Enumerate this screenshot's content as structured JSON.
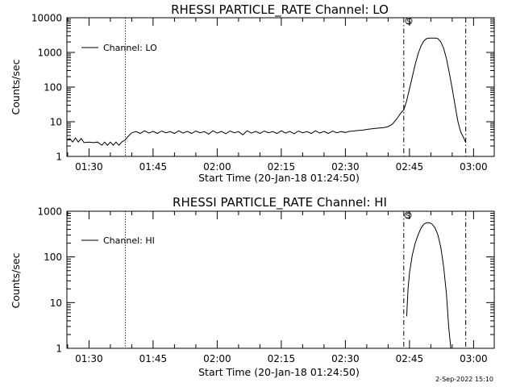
{
  "timestamp": "2-Sep-2022 15:10",
  "chart_data": [
    {
      "type": "line",
      "title": "RHESSI PARTICLE_RATE Channel: LO",
      "xlabel": "Start Time (20-Jan-18 01:24:50)",
      "ylabel": "Counts/sec",
      "y_scale": "log",
      "ylim": [
        1,
        10000
      ],
      "y_ticks": [
        "1",
        "10",
        "100",
        "1000",
        "10000"
      ],
      "xlim": [
        "01:24:50",
        "03:04:50"
      ],
      "x_ticks": [
        "01:30",
        "01:45",
        "02:00",
        "02:15",
        "02:30",
        "02:45",
        "03:00"
      ],
      "legend": {
        "position": "top-left",
        "entries": [
          "Channel: LO"
        ]
      },
      "marker_label": "S",
      "vertical_lines": [
        {
          "time": "01:38:30",
          "style": "dotted"
        },
        {
          "time": "02:43:40",
          "style": "dash-dot"
        },
        {
          "time": "02:58:10",
          "style": "dash-dot"
        }
      ],
      "series": [
        {
          "name": "Channel: LO",
          "points": [
            [
              "01:24:50",
              3.0
            ],
            [
              "01:25:30",
              3.3
            ],
            [
              "01:26:10",
              2.6
            ],
            [
              "01:26:50",
              3.4
            ],
            [
              "01:27:30",
              2.6
            ],
            [
              "01:28:10",
              3.3
            ],
            [
              "01:28:50",
              2.5
            ],
            [
              "01:30:00",
              2.6
            ],
            [
              "01:31:00",
              2.5
            ],
            [
              "01:32:00",
              2.6
            ],
            [
              "01:33:00",
              2.1
            ],
            [
              "01:33:40",
              2.6
            ],
            [
              "01:34:20",
              2.1
            ],
            [
              "01:35:00",
              2.6
            ],
            [
              "01:35:40",
              2.1
            ],
            [
              "01:36:20",
              2.6
            ],
            [
              "01:37:00",
              2.1
            ],
            [
              "01:37:40",
              2.6
            ],
            [
              "01:38:30",
              3.0
            ],
            [
              "01:39:10",
              3.8
            ],
            [
              "01:40:00",
              4.8
            ],
            [
              "01:41:00",
              5.2
            ],
            [
              "01:42:00",
              4.6
            ],
            [
              "01:43:00",
              5.5
            ],
            [
              "01:44:00",
              4.7
            ],
            [
              "01:45:00",
              5.3
            ],
            [
              "01:46:00",
              4.6
            ],
            [
              "01:47:00",
              5.4
            ],
            [
              "01:48:00",
              4.8
            ],
            [
              "01:49:00",
              5.2
            ],
            [
              "01:50:00",
              4.6
            ],
            [
              "01:51:00",
              5.5
            ],
            [
              "01:52:00",
              4.7
            ],
            [
              "01:53:00",
              5.3
            ],
            [
              "01:54:00",
              4.6
            ],
            [
              "01:55:00",
              5.4
            ],
            [
              "01:56:00",
              4.8
            ],
            [
              "01:57:00",
              5.2
            ],
            [
              "01:58:00",
              4.4
            ],
            [
              "01:59:00",
              5.5
            ],
            [
              "02:00:00",
              4.7
            ],
            [
              "02:01:00",
              5.3
            ],
            [
              "02:02:00",
              4.5
            ],
            [
              "02:03:00",
              5.4
            ],
            [
              "02:04:00",
              4.8
            ],
            [
              "02:05:00",
              5.2
            ],
            [
              "02:06:00",
              4.2
            ],
            [
              "02:07:00",
              5.5
            ],
            [
              "02:08:00",
              4.7
            ],
            [
              "02:09:00",
              5.3
            ],
            [
              "02:10:00",
              4.6
            ],
            [
              "02:11:00",
              5.4
            ],
            [
              "02:12:00",
              4.8
            ],
            [
              "02:13:00",
              5.2
            ],
            [
              "02:14:00",
              4.6
            ],
            [
              "02:15:00",
              5.5
            ],
            [
              "02:16:00",
              4.7
            ],
            [
              "02:17:00",
              5.3
            ],
            [
              "02:18:00",
              4.5
            ],
            [
              "02:19:00",
              5.4
            ],
            [
              "02:20:00",
              4.8
            ],
            [
              "02:21:00",
              5.2
            ],
            [
              "02:22:00",
              4.6
            ],
            [
              "02:23:00",
              5.5
            ],
            [
              "02:24:00",
              4.7
            ],
            [
              "02:25:00",
              5.3
            ],
            [
              "02:26:00",
              4.6
            ],
            [
              "02:27:00",
              5.4
            ],
            [
              "02:28:00",
              4.8
            ],
            [
              "02:29:00",
              5.2
            ],
            [
              "02:30:00",
              4.9
            ],
            [
              "02:31:00",
              5.3
            ],
            [
              "02:32:00",
              5.4
            ],
            [
              "02:33:00",
              5.6
            ],
            [
              "02:34:00",
              5.7
            ],
            [
              "02:35:00",
              6.0
            ],
            [
              "02:36:00",
              6.2
            ],
            [
              "02:37:00",
              6.4
            ],
            [
              "02:38:00",
              6.6
            ],
            [
              "02:39:00",
              6.8
            ],
            [
              "02:40:00",
              7.2
            ],
            [
              "02:41:00",
              8.5
            ],
            [
              "02:42:00",
              12
            ],
            [
              "02:43:00",
              18
            ],
            [
              "02:43:40",
              22
            ],
            [
              "02:44:20",
              40
            ],
            [
              "02:45:00",
              90
            ],
            [
              "02:45:40",
              200
            ],
            [
              "02:46:20",
              450
            ],
            [
              "02:47:00",
              900
            ],
            [
              "02:47:40",
              1500
            ],
            [
              "02:48:20",
              2100
            ],
            [
              "02:49:00",
              2500
            ],
            [
              "02:49:40",
              2600
            ],
            [
              "02:50:20",
              2600
            ],
            [
              "02:51:00",
              2600
            ],
            [
              "02:51:40",
              2500
            ],
            [
              "02:52:20",
              2000
            ],
            [
              "02:53:00",
              1300
            ],
            [
              "02:53:40",
              650
            ],
            [
              "02:54:20",
              250
            ],
            [
              "02:55:00",
              90
            ],
            [
              "02:55:40",
              30
            ],
            [
              "02:56:20",
              10
            ],
            [
              "02:57:00",
              5
            ],
            [
              "02:57:40",
              3.5
            ],
            [
              "02:58:10",
              2.5
            ]
          ]
        }
      ]
    },
    {
      "type": "line",
      "title": "RHESSI PARTICLE_RATE Channel: HI",
      "xlabel": "Start Time (20-Jan-18 01:24:50)",
      "ylabel": "Counts/sec",
      "y_scale": "log",
      "ylim": [
        1,
        1000
      ],
      "y_ticks": [
        "1",
        "10",
        "100",
        "1000"
      ],
      "xlim": [
        "01:24:50",
        "03:04:50"
      ],
      "x_ticks": [
        "01:30",
        "01:45",
        "02:00",
        "02:15",
        "02:30",
        "02:45",
        "03:00"
      ],
      "legend": {
        "position": "top-left",
        "entries": [
          "Channel: HI"
        ]
      },
      "marker_label": "S",
      "vertical_lines": [
        {
          "time": "01:38:30",
          "style": "dotted"
        },
        {
          "time": "02:43:40",
          "style": "dash-dot"
        },
        {
          "time": "02:58:10",
          "style": "dash-dot"
        }
      ],
      "series": [
        {
          "name": "Channel: HI",
          "points": [
            [
              "02:44:20",
              5
            ],
            [
              "02:44:40",
              20
            ],
            [
              "02:45:00",
              45
            ],
            [
              "02:45:40",
              110
            ],
            [
              "02:46:20",
              200
            ],
            [
              "02:47:00",
              300
            ],
            [
              "02:47:40",
              420
            ],
            [
              "02:48:20",
              520
            ],
            [
              "02:49:00",
              560
            ],
            [
              "02:49:40",
              560
            ],
            [
              "02:50:20",
              520
            ],
            [
              "02:51:00",
              430
            ],
            [
              "02:51:40",
              300
            ],
            [
              "02:52:20",
              160
            ],
            [
              "02:53:00",
              60
            ],
            [
              "02:53:40",
              15
            ],
            [
              "02:54:10",
              3
            ],
            [
              "02:54:40",
              1
            ]
          ]
        }
      ]
    }
  ]
}
